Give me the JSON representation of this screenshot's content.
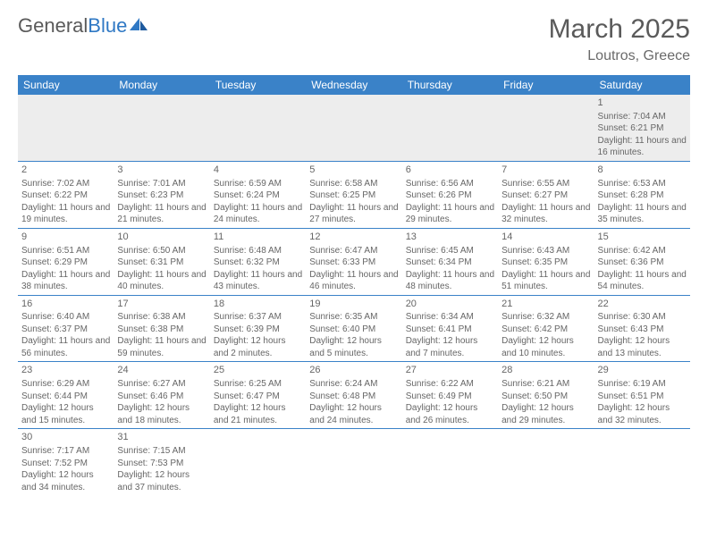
{
  "brand": {
    "name1": "General",
    "name2": "Blue"
  },
  "title": "March 2025",
  "location": "Loutros, Greece",
  "colors": {
    "header_bg": "#3a82c8",
    "header_fg": "#ffffff",
    "border": "#3a82c8",
    "text": "#666666",
    "brand_blue": "#2f78c4",
    "gray_row": "#ededed"
  },
  "weekdays": [
    "Sunday",
    "Monday",
    "Tuesday",
    "Wednesday",
    "Thursday",
    "Friday",
    "Saturday"
  ],
  "grid": [
    [
      null,
      null,
      null,
      null,
      null,
      null,
      {
        "d": "1",
        "sr": "7:04 AM",
        "ss": "6:21 PM",
        "dl": "11 hours and 16 minutes."
      }
    ],
    [
      {
        "d": "2",
        "sr": "7:02 AM",
        "ss": "6:22 PM",
        "dl": "11 hours and 19 minutes."
      },
      {
        "d": "3",
        "sr": "7:01 AM",
        "ss": "6:23 PM",
        "dl": "11 hours and 21 minutes."
      },
      {
        "d": "4",
        "sr": "6:59 AM",
        "ss": "6:24 PM",
        "dl": "11 hours and 24 minutes."
      },
      {
        "d": "5",
        "sr": "6:58 AM",
        "ss": "6:25 PM",
        "dl": "11 hours and 27 minutes."
      },
      {
        "d": "6",
        "sr": "6:56 AM",
        "ss": "6:26 PM",
        "dl": "11 hours and 29 minutes."
      },
      {
        "d": "7",
        "sr": "6:55 AM",
        "ss": "6:27 PM",
        "dl": "11 hours and 32 minutes."
      },
      {
        "d": "8",
        "sr": "6:53 AM",
        "ss": "6:28 PM",
        "dl": "11 hours and 35 minutes."
      }
    ],
    [
      {
        "d": "9",
        "sr": "6:51 AM",
        "ss": "6:29 PM",
        "dl": "11 hours and 38 minutes."
      },
      {
        "d": "10",
        "sr": "6:50 AM",
        "ss": "6:31 PM",
        "dl": "11 hours and 40 minutes."
      },
      {
        "d": "11",
        "sr": "6:48 AM",
        "ss": "6:32 PM",
        "dl": "11 hours and 43 minutes."
      },
      {
        "d": "12",
        "sr": "6:47 AM",
        "ss": "6:33 PM",
        "dl": "11 hours and 46 minutes."
      },
      {
        "d": "13",
        "sr": "6:45 AM",
        "ss": "6:34 PM",
        "dl": "11 hours and 48 minutes."
      },
      {
        "d": "14",
        "sr": "6:43 AM",
        "ss": "6:35 PM",
        "dl": "11 hours and 51 minutes."
      },
      {
        "d": "15",
        "sr": "6:42 AM",
        "ss": "6:36 PM",
        "dl": "11 hours and 54 minutes."
      }
    ],
    [
      {
        "d": "16",
        "sr": "6:40 AM",
        "ss": "6:37 PM",
        "dl": "11 hours and 56 minutes."
      },
      {
        "d": "17",
        "sr": "6:38 AM",
        "ss": "6:38 PM",
        "dl": "11 hours and 59 minutes."
      },
      {
        "d": "18",
        "sr": "6:37 AM",
        "ss": "6:39 PM",
        "dl": "12 hours and 2 minutes."
      },
      {
        "d": "19",
        "sr": "6:35 AM",
        "ss": "6:40 PM",
        "dl": "12 hours and 5 minutes."
      },
      {
        "d": "20",
        "sr": "6:34 AM",
        "ss": "6:41 PM",
        "dl": "12 hours and 7 minutes."
      },
      {
        "d": "21",
        "sr": "6:32 AM",
        "ss": "6:42 PM",
        "dl": "12 hours and 10 minutes."
      },
      {
        "d": "22",
        "sr": "6:30 AM",
        "ss": "6:43 PM",
        "dl": "12 hours and 13 minutes."
      }
    ],
    [
      {
        "d": "23",
        "sr": "6:29 AM",
        "ss": "6:44 PM",
        "dl": "12 hours and 15 minutes."
      },
      {
        "d": "24",
        "sr": "6:27 AM",
        "ss": "6:46 PM",
        "dl": "12 hours and 18 minutes."
      },
      {
        "d": "25",
        "sr": "6:25 AM",
        "ss": "6:47 PM",
        "dl": "12 hours and 21 minutes."
      },
      {
        "d": "26",
        "sr": "6:24 AM",
        "ss": "6:48 PM",
        "dl": "12 hours and 24 minutes."
      },
      {
        "d": "27",
        "sr": "6:22 AM",
        "ss": "6:49 PM",
        "dl": "12 hours and 26 minutes."
      },
      {
        "d": "28",
        "sr": "6:21 AM",
        "ss": "6:50 PM",
        "dl": "12 hours and 29 minutes."
      },
      {
        "d": "29",
        "sr": "6:19 AM",
        "ss": "6:51 PM",
        "dl": "12 hours and 32 minutes."
      }
    ],
    [
      {
        "d": "30",
        "sr": "7:17 AM",
        "ss": "7:52 PM",
        "dl": "12 hours and 34 minutes."
      },
      {
        "d": "31",
        "sr": "7:15 AM",
        "ss": "7:53 PM",
        "dl": "12 hours and 37 minutes."
      },
      null,
      null,
      null,
      null,
      null
    ]
  ],
  "labels": {
    "sunrise": "Sunrise:",
    "sunset": "Sunset:",
    "daylight": "Daylight:"
  }
}
